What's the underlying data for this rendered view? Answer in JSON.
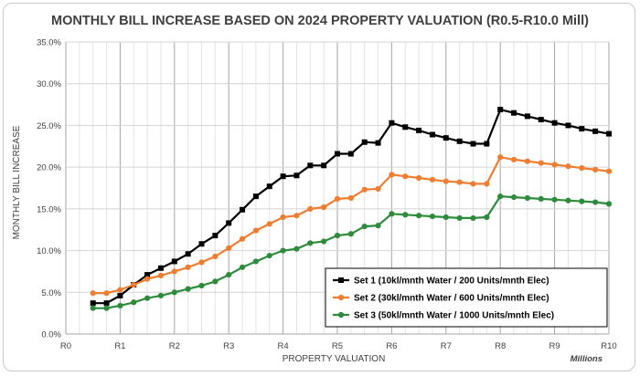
{
  "chart_data": {
    "type": "line",
    "title": "MONTHLY BILL INCREASE BASED ON 2024 PROPERTY VALUATION (R0.5-R10.0 Mill)",
    "xlabel": "PROPERTY VALUATION",
    "ylabel": "MONTHLY BILL INCREASE",
    "x_units_note": "Millions",
    "xlim": [
      0,
      10
    ],
    "ylim": [
      0,
      35
    ],
    "x_ticks": [
      0,
      1,
      2,
      3,
      4,
      5,
      6,
      7,
      8,
      9,
      10
    ],
    "x_tick_labels": [
      "R0",
      "R1",
      "R2",
      "R3",
      "R4",
      "R5",
      "R6",
      "R7",
      "R8",
      "R9",
      "R10"
    ],
    "y_ticks": [
      0,
      5,
      10,
      15,
      20,
      25,
      30,
      35
    ],
    "y_tick_labels": [
      "0.0%",
      "5.0%",
      "10.0%",
      "15.0%",
      "20.0%",
      "25.0%",
      "30.0%",
      "35.0%"
    ],
    "grid": true,
    "legend_position": "bottom-right",
    "x": [
      0.5,
      0.75,
      1.0,
      1.25,
      1.5,
      1.75,
      2.0,
      2.25,
      2.5,
      2.75,
      3.0,
      3.25,
      3.5,
      3.75,
      4.0,
      4.25,
      4.5,
      4.75,
      5.0,
      5.25,
      5.5,
      5.75,
      6.0,
      6.25,
      6.5,
      6.75,
      7.0,
      7.25,
      7.5,
      7.75,
      8.0,
      8.25,
      8.5,
      8.75,
      9.0,
      9.25,
      9.5,
      9.75,
      10.0
    ],
    "series": [
      {
        "name": "Set 1 (10kl/mnth Water / 200 Units/mnth Elec)",
        "color": "#000000",
        "values": [
          3.7,
          3.7,
          4.6,
          5.9,
          7.1,
          7.9,
          8.7,
          9.6,
          10.8,
          11.8,
          13.3,
          14.9,
          16.5,
          17.7,
          18.9,
          19.0,
          20.2,
          20.2,
          21.6,
          21.6,
          23.0,
          22.9,
          25.3,
          24.8,
          24.4,
          23.9,
          23.5,
          23.1,
          22.8,
          22.8,
          26.9,
          26.5,
          26.1,
          25.7,
          25.3,
          25.0,
          24.6,
          24.3,
          24.0
        ]
      },
      {
        "name": "Set 2 (30kl/mnth Water / 600 Units/mnth Elec)",
        "color": "#ed7d31",
        "values": [
          4.9,
          4.9,
          5.3,
          5.9,
          6.6,
          7.0,
          7.5,
          8.0,
          8.6,
          9.3,
          10.3,
          11.4,
          12.4,
          13.2,
          14.0,
          14.2,
          15.0,
          15.2,
          16.2,
          16.3,
          17.3,
          17.4,
          19.1,
          18.9,
          18.7,
          18.5,
          18.3,
          18.2,
          18.0,
          18.0,
          21.2,
          20.9,
          20.7,
          20.5,
          20.3,
          20.1,
          19.9,
          19.7,
          19.5
        ]
      },
      {
        "name": "Set 3 (50kl/mnth Water / 1000 Units/mnth Elec)",
        "color": "#2e8b3c",
        "values": [
          3.1,
          3.1,
          3.4,
          3.8,
          4.3,
          4.6,
          5.0,
          5.4,
          5.8,
          6.3,
          7.1,
          8.0,
          8.7,
          9.4,
          10.0,
          10.2,
          10.9,
          11.1,
          11.8,
          12.0,
          12.9,
          13.0,
          14.4,
          14.3,
          14.2,
          14.1,
          14.0,
          13.9,
          13.9,
          14.0,
          16.5,
          16.4,
          16.3,
          16.2,
          16.1,
          16.0,
          15.9,
          15.8,
          15.6
        ]
      }
    ]
  }
}
